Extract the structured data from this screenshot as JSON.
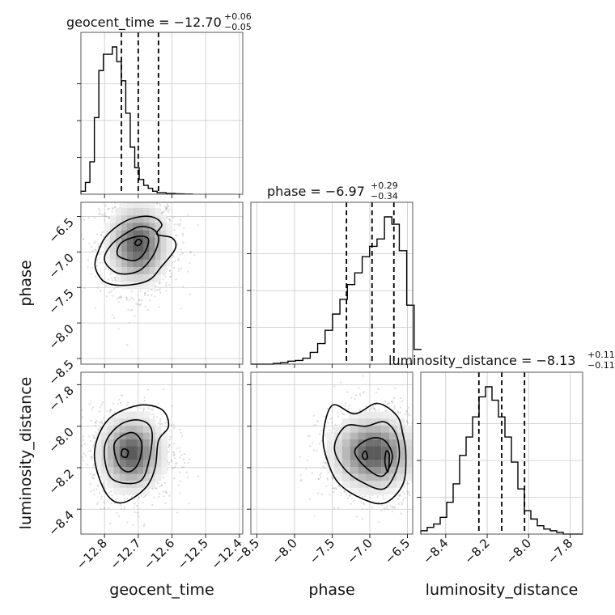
{
  "chart_data": {
    "type": "corner",
    "parameters": [
      {
        "name": "geocent_time",
        "xlim": [
          -12.87,
          -12.39
        ],
        "ticks": [
          -12.8,
          -12.7,
          -12.6,
          -12.5,
          -12.4
        ],
        "tick_labels": [
          "−12.8",
          "−12.7",
          "−12.6",
          "−12.5",
          "−12.4"
        ],
        "title_main": "geocent_time = −12.70",
        "title_sup": "+0.06",
        "title_sub": "−0.05",
        "quantiles": [
          -12.75,
          -12.7,
          -12.64
        ],
        "hist_edges_start": -12.87,
        "hist_bin_width": 0.0133,
        "hist_counts": [
          2,
          8,
          22,
          52,
          84,
          95,
          95,
          100,
          90,
          77,
          55,
          32,
          18,
          10,
          6,
          4,
          2,
          1,
          1,
          0.5,
          0.5,
          0.3,
          0.2,
          0.1,
          0.1
        ]
      },
      {
        "name": "phase",
        "xlim": [
          -8.58,
          -6.43
        ],
        "ticks": [
          -8.5,
          -8.0,
          -7.5,
          -7.0,
          -6.5
        ],
        "tick_labels": [
          "−8.5",
          "−8.0",
          "−7.5",
          "−7.0",
          "−6.5"
        ],
        "title_main": "phase = −6.97",
        "title_sup": "+0.29",
        "title_sub": "−0.34",
        "quantiles": [
          -7.31,
          -6.97,
          -6.68
        ],
        "hist_edges_start": -8.58,
        "hist_bin_width": 0.0986,
        "hist_counts": [
          0,
          0,
          0,
          0.5,
          1,
          2,
          2.5,
          4,
          8,
          14,
          23,
          34,
          44,
          54,
          62,
          73,
          80,
          85,
          100,
          95,
          77,
          40,
          10
        ]
      },
      {
        "name": "luminosity_distance",
        "xlim": [
          -8.52,
          -7.74
        ],
        "ticks": [
          -8.4,
          -8.2,
          -8.0,
          -7.8
        ],
        "tick_labels": [
          "−8.4",
          "−8.2",
          "−8.0",
          "−7.8"
        ],
        "title_main": "luminosity_distance = −8.13",
        "title_sup": "+0.11",
        "title_sub": "−0.11",
        "quantiles": [
          -8.24,
          -8.13,
          -8.02
        ],
        "hist_edges_start": -8.52,
        "hist_bin_width": 0.0312,
        "hist_counts": [
          2,
          4,
          6,
          10,
          19,
          30,
          47,
          58,
          70,
          82,
          88,
          80,
          70,
          58,
          43,
          27,
          14,
          9,
          5,
          3,
          2,
          1,
          0,
          0,
          0
        ]
      }
    ],
    "ylim": {
      "phase": [
        -8.58,
        -6.3
      ],
      "luminosity_distance": [
        -8.52,
        -7.74
      ]
    },
    "y_ticks": {
      "phase": [
        -8.5,
        -8.0,
        -7.5,
        -7.0,
        -6.5
      ],
      "luminosity_distance": [
        -8.4,
        -8.2,
        -8.0,
        -7.8
      ]
    },
    "y_tick_labels": {
      "phase": [
        "−8.5",
        "−8.0",
        "−7.5",
        "−7.0",
        "−6.5"
      ],
      "luminosity_distance": [
        "−8.4",
        "−8.2",
        "−8.0",
        "−7.8"
      ]
    },
    "contours": {
      "phase_vs_geocent_time": {
        "levels": [
          [
            [
              -12.828,
              -7.2
            ],
            [
              -12.815,
              -6.95
            ],
            [
              -12.79,
              -6.75
            ],
            [
              -12.74,
              -6.57
            ],
            [
              -12.69,
              -6.5
            ],
            [
              -12.65,
              -6.52
            ],
            [
              -12.63,
              -6.62
            ],
            [
              -12.645,
              -6.75
            ],
            [
              -12.6,
              -6.8
            ],
            [
              -12.59,
              -6.95
            ],
            [
              -12.63,
              -7.2
            ],
            [
              -12.67,
              -7.4
            ],
            [
              -12.74,
              -7.47
            ],
            [
              -12.8,
              -7.42
            ]
          ],
          [
            [
              -12.8,
              -7.12
            ],
            [
              -12.78,
              -6.9
            ],
            [
              -12.73,
              -6.72
            ],
            [
              -12.69,
              -6.64
            ],
            [
              -12.65,
              -6.7
            ],
            [
              -12.64,
              -6.85
            ],
            [
              -12.66,
              -7.08
            ],
            [
              -12.7,
              -7.27
            ],
            [
              -12.76,
              -7.3
            ]
          ],
          [
            [
              -12.76,
              -7.05
            ],
            [
              -12.75,
              -6.87
            ],
            [
              -12.7,
              -6.78
            ],
            [
              -12.67,
              -6.82
            ],
            [
              -12.68,
              -7.0
            ],
            [
              -12.71,
              -7.12
            ]
          ],
          [
            [
              -12.71,
              -6.88
            ],
            [
              -12.7,
              -6.82
            ],
            [
              -12.69,
              -6.86
            ],
            [
              -12.7,
              -6.91
            ]
          ]
        ]
      },
      "luminosity_distance_vs_geocent_time": {
        "levels": [
          [
            [
              -12.8,
              -8.31
            ],
            [
              -12.83,
              -8.13
            ],
            [
              -12.79,
              -7.97
            ],
            [
              -12.7,
              -7.9
            ],
            [
              -12.63,
              -7.92
            ],
            [
              -12.61,
              -8.0
            ],
            [
              -12.64,
              -8.07
            ],
            [
              -12.65,
              -8.2
            ],
            [
              -12.68,
              -8.3
            ],
            [
              -12.75,
              -8.37
            ]
          ],
          [
            [
              -12.78,
              -8.25
            ],
            [
              -12.8,
              -8.1
            ],
            [
              -12.76,
              -8.0
            ],
            [
              -12.7,
              -7.97
            ],
            [
              -12.66,
              -8.02
            ],
            [
              -12.67,
              -8.18
            ],
            [
              -12.7,
              -8.27
            ]
          ],
          [
            [
              -12.76,
              -8.18
            ],
            [
              -12.77,
              -8.08
            ],
            [
              -12.72,
              -8.03
            ],
            [
              -12.69,
              -8.08
            ],
            [
              -12.7,
              -8.18
            ],
            [
              -12.73,
              -8.22
            ]
          ],
          [
            [
              -12.75,
              -8.14
            ],
            [
              -12.745,
              -8.11
            ],
            [
              -12.73,
              -8.12
            ],
            [
              -12.735,
              -8.15
            ]
          ]
        ]
      },
      "luminosity_distance_vs_phase": {
        "levels": [
          [
            [
              -7.62,
              -8.05
            ],
            [
              -7.5,
              -7.9
            ],
            [
              -7.2,
              -7.94
            ],
            [
              -6.9,
              -7.89
            ],
            [
              -6.64,
              -7.95
            ],
            [
              -6.56,
              -8.04
            ],
            [
              -6.52,
              -8.14
            ],
            [
              -6.56,
              -8.28
            ],
            [
              -6.8,
              -8.37
            ],
            [
              -7.1,
              -8.35
            ],
            [
              -7.4,
              -8.28
            ],
            [
              -7.55,
              -8.18
            ]
          ],
          [
            [
              -7.47,
              -8.1
            ],
            [
              -7.32,
              -8.0
            ],
            [
              -7.05,
              -8.0
            ],
            [
              -6.8,
              -7.98
            ],
            [
              -6.64,
              -8.05
            ],
            [
              -6.62,
              -8.18
            ],
            [
              -6.8,
              -8.3
            ],
            [
              -7.1,
              -8.27
            ],
            [
              -7.35,
              -8.2
            ]
          ],
          [
            [
              -7.2,
              -8.12
            ],
            [
              -7.0,
              -8.06
            ],
            [
              -6.8,
              -8.07
            ],
            [
              -6.7,
              -8.15
            ],
            [
              -6.83,
              -8.24
            ],
            [
              -7.05,
              -8.2
            ]
          ],
          [
            [
              -7.1,
              -8.14
            ],
            [
              -7.06,
              -8.12
            ],
            [
              -7.03,
              -8.15
            ],
            [
              -7.07,
              -8.16
            ]
          ],
          [
            [
              -6.8,
              -8.17
            ],
            [
              -6.78,
              -8.12
            ],
            [
              -6.74,
              -8.14
            ],
            [
              -6.76,
              -8.22
            ]
          ]
        ]
      }
    },
    "density_blocks": {
      "phase_vs_geocent_time": {
        "center": [
          -12.7,
          -6.9
        ],
        "spread": [
          0.045,
          0.28
        ],
        "xbins": 14,
        "ybins": 14
      },
      "luminosity_distance_vs_geocent_time": {
        "center": [
          -12.72,
          -8.13
        ],
        "spread": [
          0.048,
          0.09
        ],
        "xbins": 14,
        "ybins": 14
      },
      "luminosity_distance_vs_phase": {
        "center": [
          -6.95,
          -8.13
        ],
        "spread": [
          0.28,
          0.09
        ],
        "xbins": 14,
        "ybins": 14
      }
    },
    "colors": {
      "line": "#000000",
      "grid": "#c8c8c8",
      "scatter": "#9a9a9a"
    },
    "grid": true
  }
}
